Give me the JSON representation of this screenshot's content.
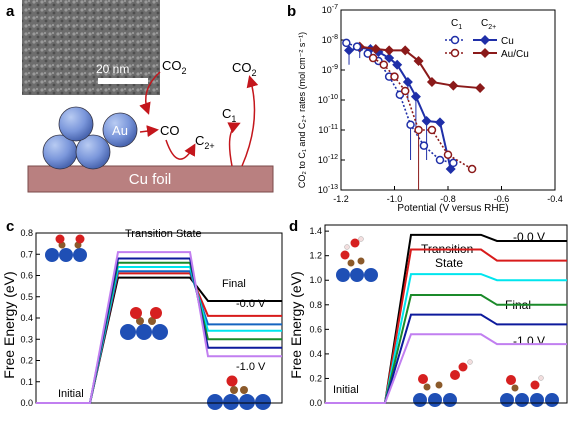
{
  "panel_a": {
    "letter": "a",
    "scale_bar": "20 nm",
    "foil_label": "Cu foil",
    "particle_label": "Au",
    "species": {
      "co2_left": "CO",
      "co2_left_sub": "2",
      "co": "CO",
      "c2": "C",
      "c2_sub": "2+",
      "c1": "C",
      "c1_sub": "1",
      "co2_right": "CO",
      "co2_right_sub": "2"
    }
  },
  "panel_b": {
    "letter": "b",
    "legend": {
      "c1": "C",
      "c1_sub": "1",
      "c2": "C",
      "c2_sub": "2+",
      "cu": "Cu",
      "aucu": "Au/Cu"
    },
    "ylabel": "CO₂ to C₁ and C₂₊ rates (mol cm⁻² s⁻¹)",
    "xlabel": "Potential (V versus RHE)",
    "colors": {
      "cu": "#1f2fa8",
      "aucu": "#8b1a1a"
    }
  },
  "panel_c": {
    "letter": "c",
    "ylabel": "Free Energy (eV)",
    "ts_label": "Transition State",
    "final_label": "Final",
    "initial_label": "Initial",
    "top_potential": "-0.0 V",
    "bottom_potential": "-1.0 V"
  },
  "panel_d": {
    "letter": "d",
    "ylabel": "Free Energy (eV)",
    "ts_label_1": "Transition",
    "ts_label_2": "State",
    "final_label": "Final",
    "initial_label": "Initial",
    "top_potential": "-0.0 V",
    "bottom_potential": "-1.0 V"
  },
  "chart_data": [
    {
      "type": "scatter",
      "panel": "b",
      "xlabel": "Potential (V versus RHE)",
      "ylabel": "CO2 to C1 and C2+ rates (mol cm-2 s-1)",
      "xlim": [
        -1.2,
        -0.4
      ],
      "ylim_log10": [
        -13,
        -7
      ],
      "yscale": "log",
      "xticks": [
        "-1.2",
        "-1.0",
        "-0.8",
        "-0.6",
        "-0.4"
      ],
      "yticks": [
        "10-13",
        "10-12",
        "10-11",
        "10-10",
        "10-9",
        "10-8",
        "10-7"
      ],
      "series": [
        {
          "name": "Cu C2+",
          "style": "solid-filled",
          "color": "#1f2fa8",
          "x": [
            -1.17,
            -1.13,
            -1.09,
            -1.06,
            -1.02,
            -0.99,
            -0.95,
            -0.92,
            -0.88,
            -0.83,
            -0.79
          ],
          "y": [
            4.5e-09,
            5.5e-09,
            5e-09,
            4e-09,
            2.5e-09,
            1.5e-09,
            4e-10,
            1.3e-10,
            2e-11,
            1.8e-11,
            5e-13
          ],
          "err_down": [
            3e-09,
            3e-09,
            0,
            0,
            0,
            0,
            3e-10,
            1.2e-10,
            1.9e-11,
            0,
            0
          ]
        },
        {
          "name": "Au/Cu C2+",
          "style": "solid-filled",
          "color": "#8b1a1a",
          "x": [
            -1.13,
            -1.07,
            -1.02,
            -0.96,
            -0.91,
            -0.86,
            -0.78,
            -0.68
          ],
          "y": [
            6e-09,
            5e-09,
            4.5e-09,
            4.5e-09,
            2e-09,
            4e-10,
            3e-10,
            2.5e-10
          ],
          "err_down": [
            0,
            0,
            0,
            0,
            0,
            0,
            0,
            0
          ]
        },
        {
          "name": "Cu C1",
          "style": "dotted-open",
          "color": "#1f2fa8",
          "x": [
            -1.18,
            -1.14,
            -1.1,
            -1.06,
            -1.02,
            -0.98,
            -0.94,
            -0.89,
            -0.83,
            -0.78
          ],
          "y": [
            8e-09,
            6e-09,
            3.5e-09,
            2e-09,
            6e-10,
            1.5e-10,
            1.5e-11,
            3e-12,
            1e-12,
            8e-13
          ],
          "err_down": [
            0,
            0,
            0,
            0,
            0,
            0,
            1.4e-11,
            0,
            0,
            0
          ]
        },
        {
          "name": "Au/Cu C1",
          "style": "dotted-open",
          "color": "#8b1a1a",
          "x": [
            -1.08,
            -1.04,
            -1.0,
            -0.96,
            -0.91,
            -0.86,
            -0.8,
            -0.71
          ],
          "y": [
            2.5e-09,
            1.5e-09,
            6e-10,
            2e-10,
            1e-11,
            1e-11,
            1.5e-12,
            5e-13
          ],
          "err_down": [
            0,
            0,
            0,
            0,
            9.9e-12,
            0,
            0,
            0
          ]
        }
      ]
    },
    {
      "type": "line",
      "panel": "c",
      "ylabel": "Free Energy (eV)",
      "ylim": [
        0,
        0.8
      ],
      "yticks": [
        "0.0",
        "0.1",
        "0.2",
        "0.3",
        "0.4",
        "0.5",
        "0.6",
        "0.7",
        "0.8"
      ],
      "stages": [
        "Initial",
        "Transition State",
        "Final"
      ],
      "series": [
        {
          "potential": "-0.0 V",
          "color": "#000000",
          "ts": 0.59,
          "final": 0.48
        },
        {
          "color": "#d81b1b",
          "ts": 0.61,
          "final": 0.41
        },
        {
          "color": "#1565c0",
          "ts": 0.62,
          "final": 0.37
        },
        {
          "color": "#00e5ee",
          "ts": 0.64,
          "final": 0.34
        },
        {
          "color": "#1b8a2a",
          "ts": 0.66,
          "final": 0.3
        },
        {
          "color": "#0d1a9c",
          "ts": 0.68,
          "final": 0.26
        },
        {
          "potential": "-1.0 V",
          "color": "#c17ff0",
          "ts": 0.71,
          "final": 0.22
        }
      ]
    },
    {
      "type": "line",
      "panel": "d",
      "ylabel": "Free Energy (eV)",
      "ylim": [
        0,
        1.45
      ],
      "yticks": [
        "0.0",
        "0.2",
        "0.4",
        "0.6",
        "0.8",
        "1.0",
        "1.2",
        "1.4"
      ],
      "stages": [
        "Initial",
        "Transition State",
        "Final"
      ],
      "series": [
        {
          "potential": "-0.0 V",
          "color": "#000000",
          "ts": 1.37,
          "final": 1.32
        },
        {
          "color": "#d81b1b",
          "ts": 1.25,
          "final": 1.16
        },
        {
          "color": "#00e5ee",
          "ts": 1.05,
          "final": 1.0
        },
        {
          "color": "#1b8a2a",
          "ts": 0.88,
          "final": 0.8
        },
        {
          "color": "#0d1a9c",
          "ts": 0.72,
          "final": 0.64
        },
        {
          "potential": "-1.0 V",
          "color": "#c17ff0",
          "ts": 0.56,
          "final": 0.48
        }
      ]
    }
  ]
}
